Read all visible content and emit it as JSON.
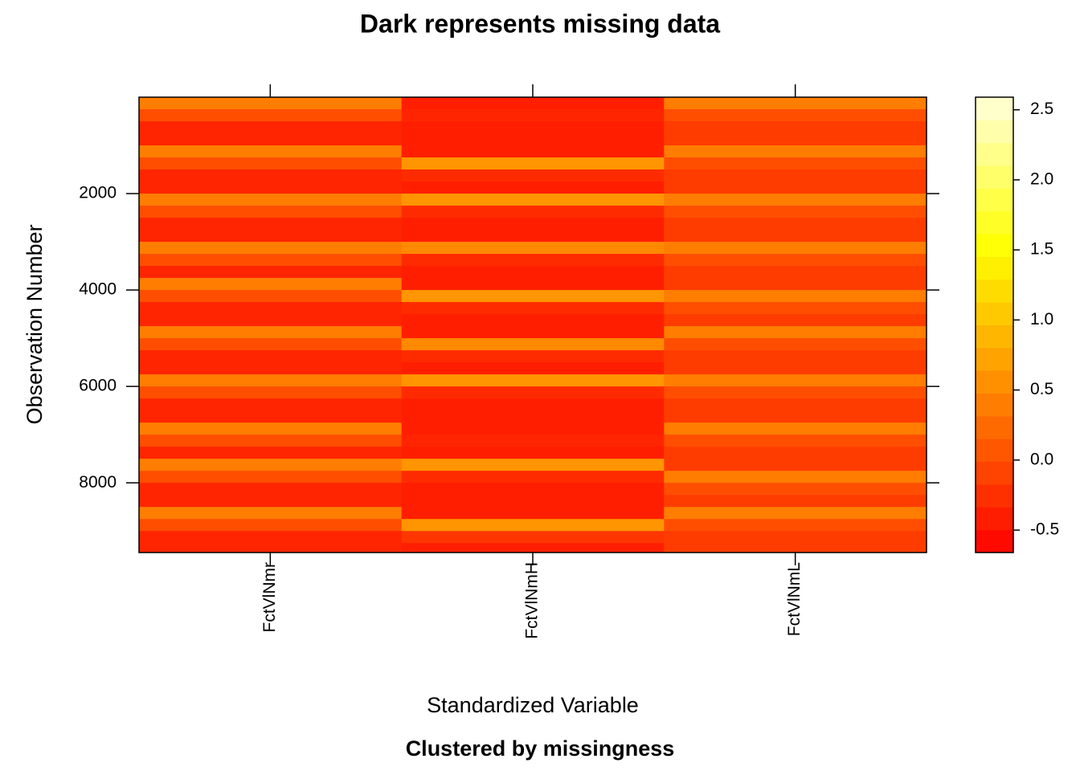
{
  "chart_data": {
    "type": "heatmap",
    "title": "Dark represents missing data",
    "subtitle": "Clustered by missingness",
    "xlabel": "Standardized Variable",
    "ylabel": "Observation Number",
    "columns": [
      "FctVlNmr",
      "FctVlNmH",
      "FctVlNmL"
    ],
    "bins": [
      0,
      250,
      500,
      750,
      1000,
      1250,
      1500,
      1750,
      2000,
      2250,
      2500,
      2750,
      3000,
      3250,
      3500,
      3750,
      4000,
      4250,
      4500,
      4750,
      5000,
      5250,
      5500,
      5750,
      6000,
      6250,
      6500,
      6750,
      7000,
      7250,
      7500,
      7750,
      8000,
      8250,
      8500,
      8750,
      9000,
      9250,
      9446
    ],
    "values": [
      [
        0.4,
        -0.4,
        0.4
      ],
      [
        0.0,
        -0.35,
        0.0
      ],
      [
        -0.35,
        -0.4,
        -0.15
      ],
      [
        -0.35,
        -0.4,
        -0.15
      ],
      [
        0.4,
        -0.4,
        0.4
      ],
      [
        0.0,
        0.6,
        0.0
      ],
      [
        -0.35,
        -0.3,
        -0.15
      ],
      [
        -0.35,
        -0.4,
        -0.15
      ],
      [
        0.4,
        0.6,
        0.4
      ],
      [
        0.0,
        -0.3,
        0.0
      ],
      [
        -0.35,
        -0.4,
        -0.15
      ],
      [
        -0.35,
        -0.4,
        -0.15
      ],
      [
        0.4,
        0.5,
        0.4
      ],
      [
        0.0,
        -0.3,
        0.0
      ],
      [
        -0.35,
        -0.4,
        -0.15
      ],
      [
        0.4,
        -0.4,
        -0.15
      ],
      [
        0.0,
        0.6,
        0.4
      ],
      [
        -0.35,
        -0.3,
        0.0
      ],
      [
        -0.35,
        -0.4,
        -0.15
      ],
      [
        0.4,
        -0.4,
        0.4
      ],
      [
        0.0,
        0.5,
        0.0
      ],
      [
        -0.35,
        -0.3,
        -0.15
      ],
      [
        -0.35,
        -0.4,
        -0.15
      ],
      [
        0.4,
        0.6,
        0.4
      ],
      [
        0.0,
        -0.3,
        0.0
      ],
      [
        -0.35,
        -0.4,
        -0.15
      ],
      [
        -0.35,
        -0.4,
        -0.15
      ],
      [
        0.4,
        -0.4,
        0.4
      ],
      [
        0.0,
        -0.35,
        0.0
      ],
      [
        -0.35,
        -0.4,
        -0.15
      ],
      [
        0.4,
        0.6,
        -0.15
      ],
      [
        0.0,
        -0.3,
        0.4
      ],
      [
        -0.35,
        -0.4,
        0.0
      ],
      [
        -0.35,
        -0.4,
        -0.15
      ],
      [
        0.4,
        -0.4,
        0.4
      ],
      [
        0.0,
        0.6,
        0.0
      ],
      [
        -0.35,
        -0.2,
        -0.15
      ],
      [
        -0.35,
        -0.4,
        -0.15
      ]
    ],
    "ylim": [
      0,
      9446
    ],
    "y_reversed": true,
    "yticks": [
      2000,
      4000,
      6000,
      8000
    ],
    "palette": [
      "#ff0000",
      "#ff8000",
      "#ffff00",
      "#ffffdd"
    ],
    "colorbar": {
      "lim": [
        -0.66,
        2.59
      ],
      "ticks": [
        -0.5,
        {
          "value": 0,
          "label": "0.0"
        },
        0.5,
        {
          "value": 1,
          "label": "1.0"
        },
        1.5,
        {
          "value": 2,
          "label": "2.0"
        },
        2.5
      ]
    }
  }
}
